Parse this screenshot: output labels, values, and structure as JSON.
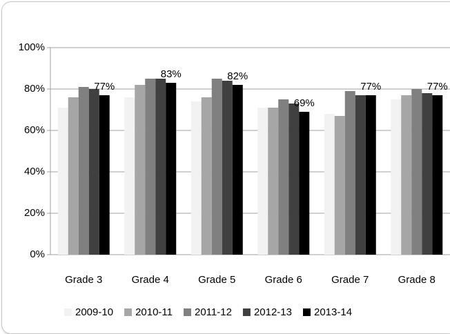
{
  "chart_data": {
    "type": "bar",
    "categories": [
      "Grade 3",
      "Grade 4",
      "Grade 5",
      "Grade 6",
      "Grade 7",
      "Grade 8"
    ],
    "series": [
      {
        "name": "2009-10",
        "color": "#f2f2f2",
        "values": [
          71,
          76,
          74,
          71,
          68,
          75
        ]
      },
      {
        "name": "2010-11",
        "color": "#a6a6a6",
        "values": [
          76,
          82,
          76,
          71,
          67,
          77
        ]
      },
      {
        "name": "2011-12",
        "color": "#808080",
        "values": [
          81,
          85,
          85,
          75,
          79,
          80
        ]
      },
      {
        "name": "2012-13",
        "color": "#404040",
        "values": [
          80,
          85,
          84,
          73,
          77,
          78
        ]
      },
      {
        "name": "2013-14",
        "color": "#000000",
        "values": [
          77,
          83,
          82,
          69,
          77,
          77
        ],
        "value_labels": [
          "77%",
          "83%",
          "82%",
          "69%",
          "77%",
          "77%"
        ]
      }
    ],
    "ylim": [
      0,
      100
    ],
    "yticks": [
      {
        "value": 0,
        "label": "0%"
      },
      {
        "value": 20,
        "label": "20%"
      },
      {
        "value": 40,
        "label": "40%"
      },
      {
        "value": 60,
        "label": "60%"
      },
      {
        "value": 80,
        "label": "80%"
      },
      {
        "value": 100,
        "label": "100%"
      }
    ],
    "grid": true,
    "legend": "bottom"
  }
}
